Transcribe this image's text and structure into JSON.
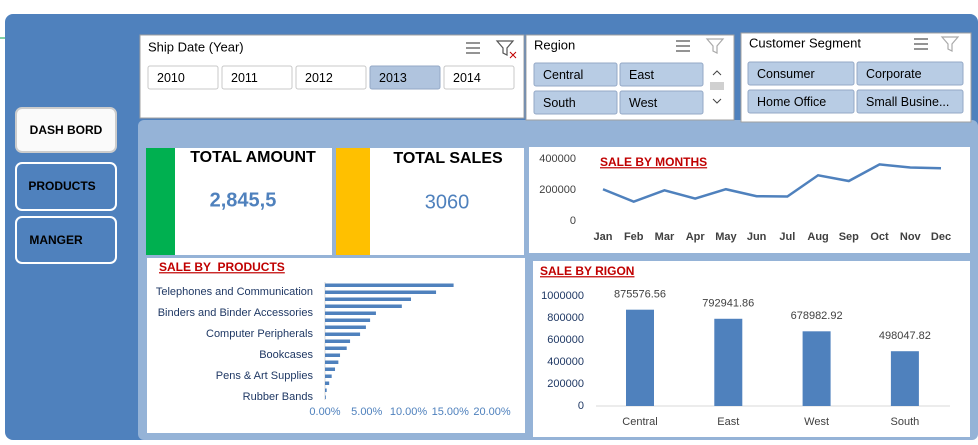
{
  "nav": [
    "DASH BORD",
    "PRODUCTS",
    "MANGER"
  ],
  "slicers": [
    {
      "title": "Ship Date (Year)",
      "items": [
        "2010",
        "2011",
        "2012",
        "2013",
        "2014"
      ],
      "selected": [
        3
      ]
    },
    {
      "title": "Region",
      "items": [
        "Central",
        "East",
        "South",
        "West"
      ],
      "selected": [
        0,
        1,
        2,
        3
      ]
    },
    {
      "title": "Customer Segment",
      "items": [
        "Consumer",
        "Corporate",
        "Home Office",
        "Small Busine..."
      ],
      "selected": [
        0,
        1,
        2,
        3
      ]
    }
  ],
  "kpis": [
    {
      "title": "TOTAL AMOUNT",
      "value": "2,845,5",
      "color": "#00b050"
    },
    {
      "title": "TOTAL SALES",
      "value": 3060,
      "color": "#ffc000"
    }
  ],
  "chart_data": [
    {
      "type": "line",
      "title": "SALE BY MONTHS",
      "color": "#4f81bd",
      "categories": [
        "Jan",
        "Feb",
        "Mar",
        "Apr",
        "May",
        "Jun",
        "Jul",
        "Aug",
        "Sep",
        "Oct",
        "Nov",
        "Dec"
      ],
      "values": [
        205000,
        125000,
        198000,
        145000,
        205000,
        160000,
        158000,
        295000,
        258000,
        365000,
        345000,
        340000
      ],
      "ylim": [
        0,
        400000
      ],
      "yticks": [
        0,
        200000,
        400000
      ]
    },
    {
      "type": "hbar",
      "title": "SALE BY  PRODUCTS",
      "color": "#4f81bd",
      "categories": [
        null,
        "Telephones and Communication",
        null,
        null,
        "Binders and Binder Accessories",
        null,
        null,
        "Computer Peripherals",
        null,
        null,
        "Bookcases",
        null,
        null,
        "Pens & Art Supplies",
        null,
        null,
        "Rubber Bands"
      ],
      "values": [
        15.4,
        13.3,
        10.3,
        9.2,
        6.1,
        5.4,
        4.9,
        4.2,
        3.0,
        2.6,
        1.8,
        1.6,
        1.2,
        0.8,
        0.5,
        0.2,
        0.1
      ],
      "xlim": [
        0,
        20
      ],
      "xticks": [
        {
          "value": 0,
          "label": "0.00%"
        },
        {
          "value": 5,
          "label": "5.00%"
        },
        {
          "value": 10,
          "label": "10.00%"
        },
        {
          "value": 15,
          "label": "15.00%"
        },
        {
          "value": 20,
          "label": "20.00%"
        }
      ]
    },
    {
      "type": "bar",
      "title": "SALE BY RIGON",
      "color": "#4f81bd",
      "data_labels": true,
      "categories": [
        "Central",
        "East",
        "West",
        "South"
      ],
      "values": [
        875576.56,
        792941.86,
        678982.92,
        498047.82
      ],
      "ylim": [
        0,
        1000000
      ],
      "yticks": [
        0,
        200000,
        400000,
        600000,
        800000,
        1000000
      ]
    }
  ]
}
